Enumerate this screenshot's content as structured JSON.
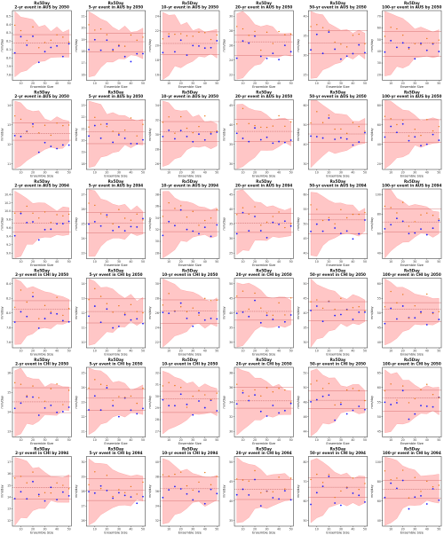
{
  "figure": {
    "rows": 6,
    "cols": 6,
    "x_ticks": [
      "10",
      "20",
      "30",
      "40",
      "50"
    ],
    "x_label": "Ensemble Size",
    "y_label": "mm/day",
    "colors": {
      "band": "#ffb3b3",
      "band_edge": "#ff8c8c",
      "ref_line": "#d06060",
      "mean_line": "#b03a3a",
      "point_blue": "#1a1aff",
      "point_orange": "#e8730c"
    }
  },
  "panels": [
    {
      "title1": "Rx5Day",
      "title2": "2-yr event in AUS by 2050",
      "yticks": [
        "8.5",
        "8.4",
        "8.3",
        "8.2",
        "8.1",
        "8.0",
        "7.9",
        "7.8"
      ]
    },
    {
      "title1": "Rx5Day",
      "title2": "5-yr event in AUS by 2050",
      "yticks": [
        "21",
        "20",
        "19",
        "18",
        "17",
        "16"
      ]
    },
    {
      "title1": "Rx5Day",
      "title2": "10-yr event in AUS by 2050",
      "yticks": [
        "24",
        "22",
        "20",
        "18",
        "16"
      ]
    },
    {
      "title1": "Rx5Day",
      "title2": "20-yr event in AUS by 2050",
      "yticks": [
        "30",
        "28",
        "26",
        "24",
        "22"
      ]
    },
    {
      "title1": "Rx5Day",
      "title2": "50-yr event in AUS by 2050",
      "yticks": [
        "40",
        "35",
        "30",
        "25"
      ]
    },
    {
      "title1": "Rx5Day",
      "title2": "100-yr event in AUS by 2050",
      "yticks": [
        "70",
        "60",
        "50",
        "40",
        "30",
        "20"
      ]
    },
    {
      "title1": "Rx5Day",
      "title2": "2-yr event in AUS by 2050",
      "yticks": [
        "14",
        "13",
        "12",
        "11"
      ]
    },
    {
      "title1": "Rx5Day",
      "title2": "5-yr event in AUS by 2050",
      "yticks": [
        "23",
        "22",
        "21",
        "20",
        "19",
        "18"
      ]
    },
    {
      "title1": "Rx5Day",
      "title2": "10-yr event in AUS by 2050",
      "yticks": [
        "34",
        "32",
        "30",
        "28",
        "26"
      ]
    },
    {
      "title1": "Rx5Day",
      "title2": "20-yr event in AUS by 2050",
      "yticks": [
        "45",
        "40",
        "35",
        "30"
      ]
    },
    {
      "title1": "Rx5Day",
      "title2": "50-yr event in AUS by 2050",
      "yticks": [
        "60",
        "50",
        "40",
        "30"
      ]
    },
    {
      "title1": "Rx5Day",
      "title2": "100-yr event in AUS by 2050",
      "yticks": [
        "80",
        "60",
        "40",
        "20"
      ]
    },
    {
      "title1": "Rx5Day",
      "title2": "2-yr event in AUS by 2094",
      "yticks": [
        "10.4",
        "10.2",
        "10.0",
        "9.8",
        "9.6",
        "9.4",
        "9.2",
        "9.0"
      ]
    },
    {
      "title1": "Rx5Day",
      "title2": "5-yr event in AUS by 2094",
      "yticks": [
        "27",
        "26",
        "25",
        "24",
        "23"
      ]
    },
    {
      "title1": "Rx5Day",
      "title2": "10-yr event in AUS by 2094",
      "yticks": [
        "38",
        "36",
        "34",
        "32",
        "30",
        "28"
      ]
    },
    {
      "title1": "Rx5Day",
      "title2": "20-yr event in AUS by 2094",
      "yticks": [
        "45",
        "40",
        "35",
        "30",
        "25"
      ]
    },
    {
      "title1": "Rx5Day",
      "title2": "50-yr event in AUS by 2094",
      "yticks": [
        "60",
        "55",
        "50",
        "45",
        "40"
      ]
    },
    {
      "title1": "Rx5Day",
      "title2": "100-yr event in AUS by 2094",
      "yticks": [
        "100",
        "80",
        "60",
        "40"
      ]
    },
    {
      "title1": "Rx5Day",
      "title2": "2-yr event in CHI by 2050",
      "yticks": [
        "8.4",
        "8.2",
        "8.0",
        "7.8",
        "7.6"
      ]
    },
    {
      "title1": "Rx5Day",
      "title2": "5-yr event in CHI by 2050",
      "yticks": [
        "14",
        "13",
        "12",
        "11",
        "10"
      ]
    },
    {
      "title1": "Rx5Day",
      "title2": "10-yr event in CHI by 2050",
      "yticks": [
        "30",
        "28",
        "26",
        "24",
        "22"
      ]
    },
    {
      "title1": "Rx5Day",
      "title2": "20-yr event in CHI by 2050",
      "yticks": [
        "50",
        "45",
        "40",
        "35",
        "30"
      ]
    },
    {
      "title1": "Rx5Day",
      "title2": "50-yr event in CHI by 2050",
      "yticks": [
        "50",
        "45",
        "40",
        "35",
        "30"
      ]
    },
    {
      "title1": "Rx5Day",
      "title2": "100-yr event in CHI by 2050",
      "yticks": [
        "60",
        "55",
        "50",
        "45",
        "40"
      ]
    },
    {
      "title1": "Rx5Day",
      "title2": "2-yr event in CHI by 2050",
      "yticks": [
        "16",
        "15",
        "14",
        "13"
      ]
    },
    {
      "title1": "Rx5Day",
      "title2": "5-yr event in CHI by 2050",
      "yticks": [
        "25",
        "24",
        "23",
        "22",
        "21"
      ]
    },
    {
      "title1": "Rx5Day",
      "title2": "10-yr event in CHI by 2050",
      "yticks": [
        "32",
        "31",
        "30",
        "29",
        "28",
        "27"
      ]
    },
    {
      "title1": "Rx5Day",
      "title2": "20-yr event in CHI by 2050",
      "yticks": [
        "38",
        "36",
        "34",
        "32",
        "30"
      ]
    },
    {
      "title1": "Rx5Day",
      "title2": "50-yr event in CHI by 2050",
      "yticks": [
        "52",
        "50",
        "48",
        "46",
        "44"
      ]
    },
    {
      "title1": "Rx5Day",
      "title2": "100-yr event in CHI by 2050",
      "yticks": [
        "65",
        "60",
        "55",
        "50",
        "45"
      ]
    },
    {
      "title1": "Rx5Day",
      "title2": "2-yr event in CHI by 2094",
      "yticks": [
        "17",
        "16",
        "15",
        "14",
        "13",
        "12"
      ]
    },
    {
      "title1": "Rx5Day",
      "title2": "5-yr event in CHI by 2094",
      "yticks": [
        "30",
        "29",
        "28",
        "27",
        "26"
      ]
    },
    {
      "title1": "Rx5Day",
      "title2": "10-yr event in CHI by 2094",
      "yticks": [
        "40",
        "38",
        "36",
        "34",
        "32"
      ]
    },
    {
      "title1": "Rx5Day",
      "title2": "20-yr event in CHI by 2094",
      "yticks": [
        "50",
        "45",
        "40",
        "35"
      ]
    },
    {
      "title1": "Rx5Day",
      "title2": "50-yr event in CHI by 2094",
      "yticks": [
        "80",
        "70",
        "60",
        "50"
      ]
    },
    {
      "title1": "Rx5Day",
      "title2": "100-yr event in CHI by 2094",
      "yticks": [
        "100",
        "80",
        "60",
        "40"
      ]
    }
  ],
  "chart_data": {
    "type": "scatter",
    "x": [
      5,
      10,
      15,
      20,
      25,
      30,
      35,
      40,
      45,
      50
    ],
    "x_range": [
      3,
      52
    ],
    "series": [
      {
        "values": [
          0.42,
          0.55,
          0.48,
          0.62,
          0.36,
          0.4,
          0.44,
          0.38,
          0.42,
          0.46
        ]
      },
      {
        "values": [
          0.68,
          0.78,
          0.64,
          0.7,
          0.52,
          0.6,
          0.58,
          0.66,
          0.56,
          0.62
        ]
      }
    ],
    "band_upper": [
      0.98,
      0.95,
      0.9,
      0.84,
      0.8,
      0.76,
      0.74,
      0.72,
      0.71,
      0.7
    ],
    "band_lower": [
      0.02,
      0.08,
      0.16,
      0.22,
      0.26,
      0.3,
      0.32,
      0.33,
      0.34,
      0.35
    ],
    "ref_lines": [
      0.68,
      0.38
    ],
    "mean_line": 0.53,
    "panel_variation_note": "each panel shows the same structure with slightly different values; values normalized 0-1 within panel y-range"
  }
}
